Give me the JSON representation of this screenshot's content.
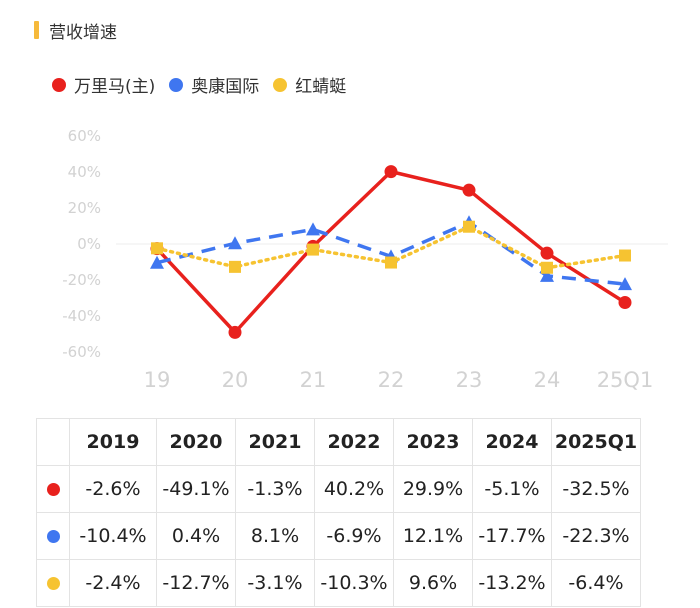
{
  "section": {
    "title": "营收增速"
  },
  "colors": {
    "accent": "#f6b93b",
    "series": [
      "#e8211d",
      "#3f76f0",
      "#f6c331"
    ]
  },
  "chart_data": {
    "type": "line",
    "title": "",
    "categories": [
      "19",
      "20",
      "21",
      "22",
      "23",
      "24",
      "25Q1"
    ],
    "y_tick_labels": [
      "60%",
      "40%",
      "20%",
      "0%",
      "-20%",
      "-40%",
      "-60%"
    ],
    "ylim": [
      -60,
      60
    ],
    "yticks": [
      60,
      40,
      20,
      0,
      -20,
      -40,
      -60
    ],
    "grid": "zero-line only",
    "legend": "top-left",
    "series": [
      {
        "name": "万里马(主)",
        "color": "#e8211d",
        "style": "solid",
        "marker": "circle",
        "values": [
          -2.6,
          -49.1,
          -1.3,
          40.2,
          29.9,
          -5.1,
          -32.5
        ]
      },
      {
        "name": "奥康国际",
        "color": "#3f76f0",
        "style": "dashed",
        "marker": "triangle",
        "values": [
          -10.4,
          0.4,
          8.1,
          -6.9,
          12.1,
          -17.7,
          -22.3
        ]
      },
      {
        "name": "红蜻蜓",
        "color": "#f6c331",
        "style": "dotted",
        "marker": "square",
        "values": [
          -2.4,
          -12.7,
          -3.1,
          -10.3,
          9.6,
          -13.2,
          -6.4
        ]
      }
    ]
  },
  "table": {
    "columns": [
      "2019",
      "2020",
      "2021",
      "2022",
      "2023",
      "2024",
      "2025Q1"
    ],
    "rows": [
      {
        "color": "#e8211d",
        "cells": [
          "-2.6%",
          "-49.1%",
          "-1.3%",
          "40.2%",
          "29.9%",
          "-5.1%",
          "-32.5%"
        ]
      },
      {
        "color": "#3f76f0",
        "cells": [
          "-10.4%",
          "0.4%",
          "8.1%",
          "-6.9%",
          "12.1%",
          "-17.7%",
          "-22.3%"
        ]
      },
      {
        "color": "#f6c331",
        "cells": [
          "-2.4%",
          "-12.7%",
          "-3.1%",
          "-10.3%",
          "9.6%",
          "-13.2%",
          "-6.4%"
        ]
      }
    ]
  }
}
